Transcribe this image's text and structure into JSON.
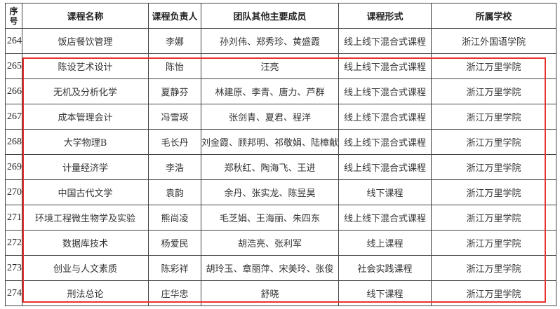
{
  "headers": {
    "seq": "序号",
    "course_name": "课程名称",
    "leader": "课程负责人",
    "members": "团队其他主要成员",
    "format": "课程形式",
    "school": "所属学校"
  },
  "rows": [
    {
      "seq": "264",
      "course_name": "饭店餐饮管理",
      "leader": "李娜",
      "members": "孙刘伟、郑秀珍、黄盛霞",
      "format": "线上线下混合式课程",
      "school": "浙江外国语学院"
    },
    {
      "seq": "265",
      "course_name": "陈设艺术设计",
      "leader": "陈怡",
      "members": "汪亮",
      "format": "线上线下混合式课程",
      "school": "浙江万里学院"
    },
    {
      "seq": "266",
      "course_name": "无机及分析化学",
      "leader": "夏静芬",
      "members": "林建原、李青、唐力、芦群",
      "format": "线上线下混合式课程",
      "school": "浙江万里学院"
    },
    {
      "seq": "267",
      "course_name": "成本管理会计",
      "leader": "冯雪瑛",
      "members": "张剑青、夏君、程洋",
      "format": "线上线下混合式课程",
      "school": "浙江万里学院"
    },
    {
      "seq": "268",
      "course_name": "大学物理B",
      "leader": "毛长丹",
      "members": "刘金霞、顾邦明、祁敬娟、陆樟献",
      "format": "线上线下混合式课程",
      "school": "浙江万里学院"
    },
    {
      "seq": "269",
      "course_name": "计量经济学",
      "leader": "李浩",
      "members": "郑秋红、陶海飞、王进",
      "format": "线上线下混合式课程",
      "school": "浙江万里学院"
    },
    {
      "seq": "270",
      "course_name": "中国古代文学",
      "leader": "袁韵",
      "members": "余丹、张实龙、陈昱昊",
      "format": "线下课程",
      "school": "浙江万里学院"
    },
    {
      "seq": "271",
      "course_name": "环境工程微生物学及实验",
      "leader": "熊尚凌",
      "members": "毛芝娟、王海丽、朱四东",
      "format": "线上线下混合式课程",
      "school": "浙江万里学院"
    },
    {
      "seq": "272",
      "course_name": "数据库技术",
      "leader": "杨爱民",
      "members": "胡浩亮、张利军",
      "format": "线上课程",
      "school": "浙江万里学院"
    },
    {
      "seq": "273",
      "course_name": "创业与人文素质",
      "leader": "陈彩祥",
      "members": "胡玲玉、章丽萍、宋美玲、张俊",
      "format": "社会实践课程",
      "school": "浙江万里学院"
    },
    {
      "seq": "274",
      "course_name": "刑法总论",
      "leader": "庄华忠",
      "members": "舒晓",
      "format": "线下课程",
      "school": "浙江万里学院"
    }
  ],
  "highlight_color": "#e8322f"
}
